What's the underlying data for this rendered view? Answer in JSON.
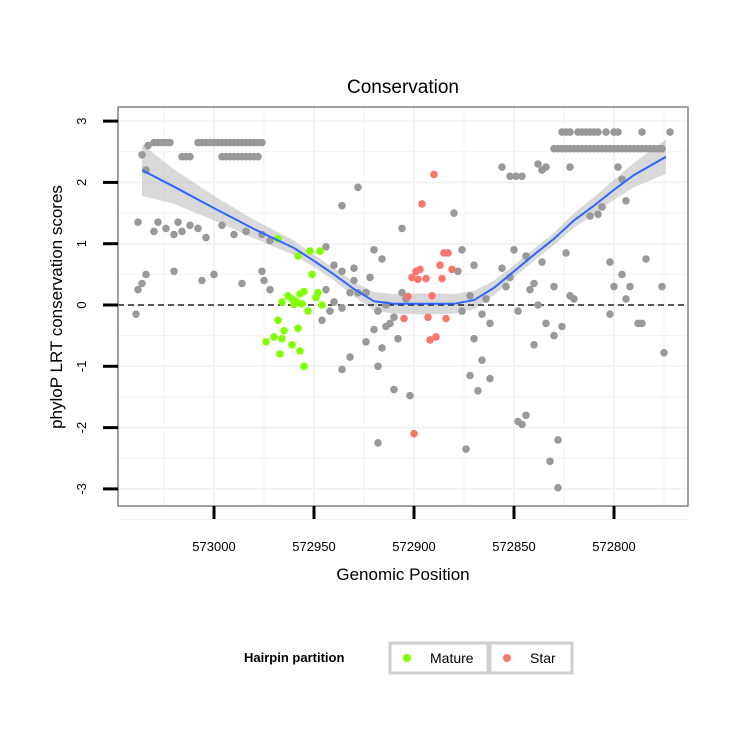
{
  "chart_data": {
    "type": "scatter",
    "title": "Conservation",
    "xlabel": "Genomic Position",
    "ylabel": "phyloP LRT conservation scores",
    "x_reversed": true,
    "xlim": [
      573050,
      572765
    ],
    "ylim": [
      -3.3,
      3.2
    ],
    "x_ticks": [
      573000,
      572950,
      572900,
      572850,
      572800
    ],
    "y_ticks": [
      3,
      2,
      1,
      0,
      -1,
      -2,
      -3
    ],
    "reference_line": {
      "y": 0,
      "style": "dashed"
    },
    "colors": {
      "background": "#ffffff",
      "grid": "#f2f2f2",
      "panel_border": "#808080",
      "Other": "#999999",
      "Mature": "#80ff00",
      "Star": "#f8766d",
      "smooth": "#3366ff",
      "ribbon": "#bfbfbf"
    },
    "legend": {
      "title": "Hairpin partition",
      "position": "bottom",
      "entries": [
        {
          "label": "Mature",
          "color": "#80ff00"
        },
        {
          "label": "Star",
          "color": "#f8766d"
        }
      ]
    },
    "smooth": {
      "x": [
        573036,
        573020,
        573000,
        572980,
        572960,
        572950,
        572940,
        572930,
        572920,
        572910,
        572900,
        572890,
        572880,
        572870,
        572860,
        572850,
        572840,
        572830,
        572820,
        572810,
        572800,
        572790,
        572774
      ],
      "y": [
        2.2,
        1.93,
        1.58,
        1.24,
        0.93,
        0.72,
        0.5,
        0.26,
        0.06,
        0.02,
        0.02,
        0.02,
        0.02,
        0.08,
        0.28,
        0.55,
        0.82,
        1.08,
        1.38,
        1.62,
        1.88,
        2.12,
        2.42
      ],
      "se": [
        0.42,
        0.28,
        0.2,
        0.15,
        0.12,
        0.1,
        0.1,
        0.12,
        0.15,
        0.16,
        0.17,
        0.17,
        0.16,
        0.15,
        0.12,
        0.1,
        0.1,
        0.1,
        0.12,
        0.14,
        0.16,
        0.2,
        0.28
      ]
    },
    "series": [
      {
        "name": "Mature",
        "points": [
          [
            572968,
            1.08
          ],
          [
            572952,
            0.88
          ],
          [
            572947,
            0.88
          ],
          [
            572958,
            0.8
          ],
          [
            572951,
            0.5
          ],
          [
            572955,
            0.22
          ],
          [
            572957,
            0.18
          ],
          [
            572948,
            0.2
          ],
          [
            572963,
            0.15
          ],
          [
            572961,
            0.1
          ],
          [
            572959,
            0.06
          ],
          [
            572966,
            0.05
          ],
          [
            572960,
            0.01
          ],
          [
            572949,
            0.12
          ],
          [
            572956,
            0.02
          ],
          [
            572946,
            0.0
          ],
          [
            572953,
            -0.1
          ],
          [
            572968,
            -0.25
          ],
          [
            572965,
            -0.42
          ],
          [
            572958,
            -0.38
          ],
          [
            572970,
            -0.52
          ],
          [
            572966,
            -0.55
          ],
          [
            572974,
            -0.6
          ],
          [
            572967,
            -0.8
          ],
          [
            572961,
            -0.65
          ],
          [
            572957,
            -0.75
          ],
          [
            572955,
            -1.0
          ]
        ]
      },
      {
        "name": "Star",
        "points": [
          [
            572890,
            2.13
          ],
          [
            572896,
            1.65
          ],
          [
            572885,
            0.85
          ],
          [
            572883,
            0.85
          ],
          [
            572887,
            0.65
          ],
          [
            572881,
            0.58
          ],
          [
            572894,
            0.43
          ],
          [
            572886,
            0.43
          ],
          [
            572901,
            0.45
          ],
          [
            572899,
            0.55
          ],
          [
            572897,
            0.58
          ],
          [
            572898,
            0.42
          ],
          [
            572891,
            0.15
          ],
          [
            572903,
            0.14
          ],
          [
            572893,
            -0.2
          ],
          [
            572884,
            -0.22
          ],
          [
            572905,
            -0.22
          ],
          [
            572889,
            -0.52
          ],
          [
            572892,
            -0.57
          ],
          [
            572900,
            -2.1
          ]
        ]
      },
      {
        "name": "Other",
        "points": [
          [
            573036,
            2.45
          ],
          [
            573034,
            2.2
          ],
          [
            573033,
            2.6
          ],
          [
            573030,
            2.65
          ],
          [
            573028,
            2.65
          ],
          [
            573026,
            2.65
          ],
          [
            573024,
            2.65
          ],
          [
            573022,
            2.65
          ],
          [
            573016,
            2.42
          ],
          [
            573014,
            2.42
          ],
          [
            573012,
            2.42
          ],
          [
            573008,
            2.65
          ],
          [
            573006,
            2.65
          ],
          [
            573004,
            2.65
          ],
          [
            573002,
            2.65
          ],
          [
            573000,
            2.65
          ],
          [
            572998,
            2.65
          ],
          [
            572996,
            2.65
          ],
          [
            572994,
            2.65
          ],
          [
            572992,
            2.65
          ],
          [
            572990,
            2.65
          ],
          [
            572988,
            2.65
          ],
          [
            572986,
            2.65
          ],
          [
            572984,
            2.65
          ],
          [
            572982,
            2.65
          ],
          [
            572980,
            2.65
          ],
          [
            572978,
            2.65
          ],
          [
            572976,
            2.65
          ],
          [
            572996,
            2.42
          ],
          [
            572994,
            2.42
          ],
          [
            572992,
            2.42
          ],
          [
            572990,
            2.42
          ],
          [
            572988,
            2.42
          ],
          [
            572986,
            2.42
          ],
          [
            572984,
            2.42
          ],
          [
            572982,
            2.42
          ],
          [
            572980,
            2.42
          ],
          [
            572978,
            2.42
          ],
          [
            573038,
            1.35
          ],
          [
            573030,
            1.2
          ],
          [
            573028,
            1.35
          ],
          [
            573024,
            1.25
          ],
          [
            573020,
            1.15
          ],
          [
            573018,
            1.35
          ],
          [
            573016,
            1.2
          ],
          [
            573012,
            1.3
          ],
          [
            573008,
            1.25
          ],
          [
            573004,
            1.1
          ],
          [
            572996,
            1.3
          ],
          [
            572990,
            1.15
          ],
          [
            572984,
            1.2
          ],
          [
            572976,
            1.15
          ],
          [
            572972,
            1.05
          ],
          [
            573034,
            0.5
          ],
          [
            573036,
            0.35
          ],
          [
            573038,
            0.25
          ],
          [
            573039,
            -0.15
          ],
          [
            573020,
            0.55
          ],
          [
            573006,
            0.4
          ],
          [
            573000,
            0.5
          ],
          [
            572986,
            0.35
          ],
          [
            572976,
            0.55
          ],
          [
            572972,
            0.25
          ],
          [
            572975,
            0.4
          ],
          [
            572944,
            0.95
          ],
          [
            572940,
            0.65
          ],
          [
            572936,
            0.55
          ],
          [
            572930,
            0.4
          ],
          [
            572932,
            0.2
          ],
          [
            572928,
            0.2
          ],
          [
            572936,
            -0.05
          ],
          [
            572940,
            0.05
          ],
          [
            572944,
            0.25
          ],
          [
            572946,
            -0.25
          ],
          [
            572942,
            -0.1
          ],
          [
            572936,
            1.62
          ],
          [
            572928,
            1.92
          ],
          [
            572930,
            0.6
          ],
          [
            572922,
            0.45
          ],
          [
            572924,
            0.2
          ],
          [
            572914,
            0.0
          ],
          [
            572918,
            -0.1
          ],
          [
            572906,
            0.2
          ],
          [
            572904,
            0.1
          ],
          [
            572910,
            -0.2
          ],
          [
            572912,
            -0.3
          ],
          [
            572920,
            -0.4
          ],
          [
            572908,
            -0.55
          ],
          [
            572914,
            -0.35
          ],
          [
            572924,
            -0.6
          ],
          [
            572916,
            -0.7
          ],
          [
            572932,
            -0.85
          ],
          [
            572936,
            -1.05
          ],
          [
            572918,
            -1.0
          ],
          [
            572910,
            -1.38
          ],
          [
            572902,
            -1.48
          ],
          [
            572918,
            -2.25
          ],
          [
            572920,
            0.9
          ],
          [
            572916,
            0.75
          ],
          [
            572906,
            1.25
          ],
          [
            572880,
            1.5
          ],
          [
            572876,
            0.9
          ],
          [
            572878,
            0.55
          ],
          [
            572870,
            0.65
          ],
          [
            572872,
            0.15
          ],
          [
            572876,
            -0.1
          ],
          [
            572866,
            -0.15
          ],
          [
            572870,
            -0.55
          ],
          [
            572862,
            -0.3
          ],
          [
            572864,
            0.1
          ],
          [
            572872,
            -1.15
          ],
          [
            572868,
            -1.4
          ],
          [
            572862,
            -1.2
          ],
          [
            572874,
            -2.35
          ],
          [
            572866,
            -0.9
          ],
          [
            572856,
            0.6
          ],
          [
            572852,
            0.45
          ],
          [
            572850,
            0.9
          ],
          [
            572854,
            0.3
          ],
          [
            572848,
            -0.1
          ],
          [
            572842,
            0.25
          ],
          [
            572844,
            0.8
          ],
          [
            572840,
            -0.65
          ],
          [
            572848,
            -1.9
          ],
          [
            572846,
            -1.95
          ],
          [
            572844,
            -1.8
          ],
          [
            572838,
            0.0
          ],
          [
            572840,
            0.35
          ],
          [
            572836,
            0.7
          ],
          [
            572834,
            -0.3
          ],
          [
            572830,
            0.3
          ],
          [
            572830,
            -0.5
          ],
          [
            572828,
            -2.2
          ],
          [
            572826,
            -0.35
          ],
          [
            572832,
            -2.55
          ],
          [
            572828,
            -2.98
          ],
          [
            572822,
            0.15
          ],
          [
            572820,
            0.1
          ],
          [
            572824,
            0.85
          ],
          [
            572822,
            2.25
          ],
          [
            572838,
            2.3
          ],
          [
            572836,
            2.2
          ],
          [
            572834,
            2.25
          ],
          [
            572846,
            2.1
          ],
          [
            572849,
            2.1
          ],
          [
            572852,
            2.1
          ],
          [
            572856,
            2.25
          ],
          [
            572812,
            1.45
          ],
          [
            572808,
            1.48
          ],
          [
            572806,
            1.6
          ],
          [
            572802,
            0.7
          ],
          [
            572802,
            -0.15
          ],
          [
            572800,
            0.3
          ],
          [
            572796,
            0.5
          ],
          [
            572794,
            0.1
          ],
          [
            572792,
            0.3
          ],
          [
            572788,
            -0.3
          ],
          [
            572786,
            -0.3
          ],
          [
            572784,
            0.75
          ],
          [
            572776,
            0.3
          ],
          [
            572775,
            -0.78
          ],
          [
            572772,
            2.82
          ],
          [
            572798,
            2.25
          ],
          [
            572796,
            2.05
          ],
          [
            572794,
            1.7
          ],
          [
            572830,
            2.55
          ],
          [
            572828,
            2.55
          ],
          [
            572826,
            2.55
          ],
          [
            572824,
            2.55
          ],
          [
            572822,
            2.55
          ],
          [
            572820,
            2.55
          ],
          [
            572818,
            2.55
          ],
          [
            572816,
            2.55
          ],
          [
            572814,
            2.55
          ],
          [
            572812,
            2.55
          ],
          [
            572810,
            2.55
          ],
          [
            572808,
            2.55
          ],
          [
            572806,
            2.55
          ],
          [
            572804,
            2.55
          ],
          [
            572802,
            2.55
          ],
          [
            572800,
            2.55
          ],
          [
            572798,
            2.55
          ],
          [
            572796,
            2.55
          ],
          [
            572794,
            2.55
          ],
          [
            572792,
            2.55
          ],
          [
            572790,
            2.55
          ],
          [
            572788,
            2.55
          ],
          [
            572786,
            2.55
          ],
          [
            572784,
            2.55
          ],
          [
            572782,
            2.55
          ],
          [
            572780,
            2.55
          ],
          [
            572778,
            2.55
          ],
          [
            572776,
            2.55
          ],
          [
            572826,
            2.82
          ],
          [
            572824,
            2.82
          ],
          [
            572822,
            2.82
          ],
          [
            572818,
            2.82
          ],
          [
            572816,
            2.82
          ],
          [
            572814,
            2.82
          ],
          [
            572812,
            2.82
          ],
          [
            572810,
            2.82
          ],
          [
            572808,
            2.82
          ],
          [
            572804,
            2.82
          ],
          [
            572800,
            2.82
          ],
          [
            572798,
            2.82
          ],
          [
            572786,
            2.82
          ]
        ]
      }
    ]
  }
}
